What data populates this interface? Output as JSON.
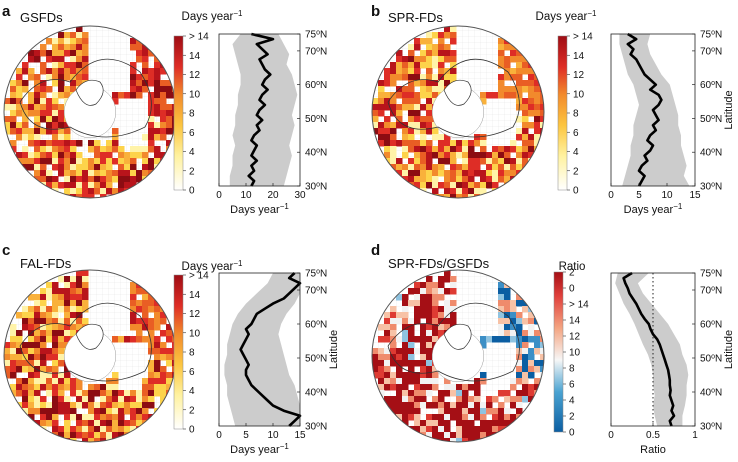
{
  "panels": [
    {
      "id": "a",
      "panel_label": "a",
      "map_title": "GSFDs",
      "colorbar": {
        "title": "Days year",
        "title_sup": "−1",
        "ticks": [
          "0",
          "2",
          "4",
          "6",
          "8",
          "10",
          "12",
          "14",
          "> 14"
        ],
        "scheme": "yellow-red"
      },
      "map_fill": {
        "high": 0.7,
        "mid": 0.2
      },
      "profile": {
        "xlabel": "Days year",
        "xlabel_sup": "−1",
        "xlim": [
          0,
          30
        ],
        "xticks": [
          "0",
          "10",
          "20",
          "30"
        ]
      },
      "show_latitude_label": false
    },
    {
      "id": "b",
      "panel_label": "b",
      "map_title": "SPR-FDs",
      "colorbar": {
        "title": "Days year",
        "title_sup": "−1",
        "ticks": [
          "0",
          "2",
          "4",
          "6",
          "8",
          "10",
          "12",
          "14",
          "> 14"
        ],
        "scheme": "yellow-red"
      },
      "map_fill": {
        "high": 0.2,
        "mid": 0.45
      },
      "profile": {
        "xlabel": "Days year",
        "xlabel_sup": "−1",
        "xlim": [
          0,
          15
        ],
        "xticks": [
          "0",
          "5",
          "10",
          "15"
        ]
      },
      "show_latitude_label": true
    },
    {
      "id": "c",
      "panel_label": "c",
      "map_title": "FAL-FDs",
      "colorbar": {
        "title": "Days year",
        "title_sup": "−1",
        "ticks": [
          "0",
          "2",
          "4",
          "6",
          "8",
          "10",
          "12",
          "14",
          "> 14"
        ],
        "scheme": "yellow-red"
      },
      "map_fill": {
        "high": 0.35,
        "mid": 0.2
      },
      "profile": {
        "xlabel": "Days year",
        "xlabel_sup": "−1",
        "xlim": [
          0,
          15
        ],
        "xticks": [
          "0",
          "5",
          "10",
          "15"
        ]
      },
      "show_latitude_label": true
    },
    {
      "id": "d",
      "panel_label": "d",
      "map_title": "SPR-FDs/GSFDs",
      "colorbar": {
        "title": "Ratio",
        "title_sup": "",
        "ticks": [
          "0",
          "2",
          "4",
          "6",
          "8",
          "10",
          "12",
          "14",
          "> 14",
          "0",
          "2"
        ],
        "scheme": "blue-red"
      },
      "map_fill": {
        "high": 0.5,
        "mid": 0.5
      },
      "profile": {
        "xlabel": "Ratio",
        "xlabel_sup": "",
        "xlim": [
          0,
          1
        ],
        "xticks": [
          "0",
          "0.5",
          "1"
        ],
        "reference_x": 0.5
      },
      "show_latitude_label": true
    }
  ],
  "latitude_axis": {
    "label": "Latitude",
    "ticks": [
      "30",
      "40",
      "50",
      "60",
      "70",
      "75"
    ],
    "tick_suffix_sup": "o",
    "tick_suffix": "N"
  },
  "chart_data": [
    {
      "type": "line",
      "panel": "a",
      "title": "",
      "xlabel": "Days year−1",
      "ylabel": "",
      "xlim": [
        0,
        30
      ],
      "ylim": [
        30,
        75
      ],
      "series": [
        {
          "x": [
            12,
            13,
            11,
            13,
            12,
            14,
            12,
            13,
            14,
            12,
            13,
            15,
            14,
            16,
            14,
            15,
            17,
            15,
            16,
            18,
            16,
            17,
            19,
            17,
            16,
            15,
            18,
            16,
            14,
            20,
            12
          ],
          "y": [
            30,
            31.5,
            33,
            34.5,
            36,
            37.5,
            39,
            40.5,
            42,
            43.5,
            45,
            46.5,
            48,
            49.5,
            51,
            52.5,
            54,
            55.5,
            57,
            58.5,
            60,
            61.5,
            63,
            64.5,
            66,
            67.5,
            69,
            70.5,
            72,
            73.5,
            75
          ]
        },
        {
          "type": "band",
          "y": [
            30,
            33,
            36,
            39,
            42,
            45,
            48,
            51,
            54,
            57,
            60,
            63,
            66,
            69,
            72,
            75
          ],
          "lower": [
            4,
            4,
            5,
            5,
            6,
            5,
            6,
            6,
            7,
            7,
            8,
            8,
            7,
            6,
            5,
            8
          ],
          "upper": [
            24,
            25,
            26,
            27,
            26,
            27,
            28,
            27,
            28,
            29,
            28,
            27,
            25,
            26,
            24,
            22
          ]
        }
      ]
    },
    {
      "type": "line",
      "panel": "b",
      "title": "",
      "xlabel": "Days year−1",
      "ylabel": "Latitude",
      "xlim": [
        0,
        15
      ],
      "ylim": [
        30,
        75
      ],
      "series": [
        {
          "x": [
            5,
            5.5,
            6,
            5,
            5.5,
            6.5,
            6,
            7,
            7.5,
            6.5,
            7,
            8,
            7.5,
            8.5,
            8,
            7.5,
            8.5,
            9,
            8.5,
            7,
            8,
            7,
            6,
            5.5,
            5,
            4.5,
            3.5,
            4,
            3,
            4.5,
            3
          ],
          "y": [
            30,
            31.5,
            33,
            34.5,
            36,
            37.5,
            39,
            40.5,
            42,
            43.5,
            45,
            46.5,
            48,
            49.5,
            51,
            52.5,
            54,
            55.5,
            57,
            58.5,
            60,
            61.5,
            63,
            64.5,
            66,
            67.5,
            69,
            70.5,
            72,
            73.5,
            75
          ]
        },
        {
          "type": "band",
          "y": [
            30,
            33,
            36,
            39,
            42,
            45,
            48,
            51,
            54,
            57,
            60,
            63,
            66,
            69,
            72,
            75
          ],
          "lower": [
            2,
            2.5,
            3,
            3.5,
            3.5,
            4,
            4,
            4.5,
            5,
            4.5,
            4,
            3,
            2.5,
            2,
            1.5,
            1.5
          ],
          "upper": [
            14,
            13,
            13.5,
            13,
            12.5,
            12.5,
            12,
            12,
            11.5,
            11,
            10.5,
            9,
            8,
            7,
            6.5,
            7
          ]
        }
      ]
    },
    {
      "type": "line",
      "panel": "c",
      "title": "",
      "xlabel": "Days year−1",
      "ylabel": "Latitude",
      "xlim": [
        0,
        15
      ],
      "ylim": [
        30,
        75
      ],
      "series": [
        {
          "x": [
            13,
            14,
            15,
            12,
            10,
            9,
            8,
            7,
            6,
            5.5,
            5,
            5,
            5.5,
            5,
            4.5,
            4,
            4.5,
            5,
            5.5,
            5,
            6,
            6.5,
            7,
            8.5,
            10,
            12,
            13,
            14,
            15,
            13,
            14
          ],
          "y": [
            30,
            31.5,
            33,
            34.5,
            36,
            37.5,
            39,
            40.5,
            42,
            43.5,
            45,
            46.5,
            48,
            49.5,
            51,
            52.5,
            54,
            55.5,
            57,
            58.5,
            60,
            61.5,
            63,
            64.5,
            66,
            67.5,
            69,
            70.5,
            72,
            73.5,
            75
          ]
        },
        {
          "type": "band",
          "y": [
            30,
            33,
            36,
            39,
            42,
            45,
            48,
            51,
            54,
            57,
            60,
            63,
            66,
            69,
            72,
            75
          ],
          "lower": [
            3,
            2.5,
            2,
            1.5,
            1.5,
            1,
            1,
            1.5,
            1.5,
            2,
            2.5,
            3.5,
            5,
            7,
            9,
            10
          ],
          "upper": [
            15,
            15,
            15,
            14.5,
            14,
            13,
            12.5,
            12,
            11.5,
            11,
            11.5,
            12.5,
            14,
            15,
            15,
            15
          ]
        }
      ]
    },
    {
      "type": "line",
      "panel": "d",
      "title": "",
      "xlabel": "Ratio",
      "ylabel": "Latitude",
      "xlim": [
        0,
        1
      ],
      "ylim": [
        30,
        75
      ],
      "series": [
        {
          "x": [
            0.72,
            0.7,
            0.75,
            0.72,
            0.74,
            0.72,
            0.7,
            0.71,
            0.7,
            0.7,
            0.69,
            0.68,
            0.66,
            0.64,
            0.62,
            0.6,
            0.58,
            0.55,
            0.5,
            0.47,
            0.45,
            0.4,
            0.36,
            0.33,
            0.3,
            0.26,
            0.22,
            0.2,
            0.17,
            0.15,
            0.25
          ],
          "y": [
            30,
            31.5,
            33,
            34.5,
            36,
            37.5,
            39,
            40.5,
            42,
            43.5,
            45,
            46.5,
            48,
            49.5,
            51,
            52.5,
            54,
            55.5,
            57,
            58.5,
            60,
            61.5,
            63,
            64.5,
            66,
            67.5,
            69,
            70.5,
            72,
            73.5,
            75
          ]
        },
        {
          "type": "band",
          "y": [
            30,
            33,
            36,
            39,
            42,
            45,
            48,
            51,
            54,
            57,
            60,
            63,
            66,
            69,
            72,
            75
          ],
          "lower": [
            0.55,
            0.52,
            0.5,
            0.52,
            0.5,
            0.5,
            0.48,
            0.44,
            0.38,
            0.33,
            0.28,
            0.22,
            0.15,
            0.1,
            0.05,
            0.08
          ],
          "upper": [
            0.85,
            0.85,
            0.88,
            0.9,
            0.9,
            0.92,
            0.9,
            0.85,
            0.82,
            0.75,
            0.68,
            0.58,
            0.48,
            0.38,
            0.32,
            0.45
          ]
        },
        {
          "type": "reference_line",
          "x": 0.5
        }
      ]
    }
  ]
}
